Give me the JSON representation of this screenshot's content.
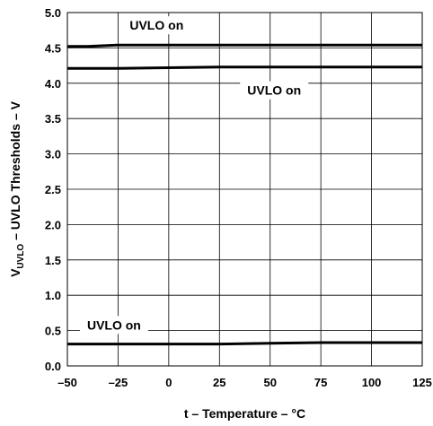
{
  "chart_data": {
    "type": "line",
    "xlabel": "t – Temperature – °C",
    "ylabel_main": "V",
    "ylabel_sub": "UVLO",
    "ylabel_rest": " – UVLO Thresholds – V",
    "xlim": [
      -50,
      125
    ],
    "ylim": [
      0.0,
      5.0
    ],
    "xticks": [
      "–50",
      "–25",
      "0",
      "25",
      "50",
      "75",
      "100",
      "125"
    ],
    "yticks": [
      "0.0",
      "0.5",
      "1.0",
      "1.5",
      "2.0",
      "2.5",
      "3.0",
      "3.5",
      "4.0",
      "4.5",
      "5.0"
    ],
    "grid": true,
    "series": [
      {
        "x": [
          -50,
          -40,
          -25,
          0,
          25,
          50,
          75,
          100,
          125
        ],
        "y": [
          4.52,
          4.52,
          4.54,
          4.54,
          4.54,
          4.54,
          4.54,
          4.54,
          4.54
        ]
      },
      {
        "x": [
          -50,
          -25,
          0,
          25,
          50,
          75,
          100,
          125
        ],
        "y": [
          4.21,
          4.21,
          4.22,
          4.23,
          4.23,
          4.23,
          4.23,
          4.23
        ]
      },
      {
        "x": [
          -50,
          -25,
          0,
          25,
          50,
          75,
          100,
          125
        ],
        "y": [
          0.31,
          0.31,
          0.31,
          0.31,
          0.32,
          0.33,
          0.33,
          0.33
        ]
      }
    ],
    "annotations": [
      {
        "text": "UVLO on",
        "x": -6,
        "y": 4.82
      },
      {
        "text": "UVLO on",
        "x": 52,
        "y": 3.9
      },
      {
        "text": "UVLO on",
        "x": -27,
        "y": 0.58
      }
    ]
  }
}
